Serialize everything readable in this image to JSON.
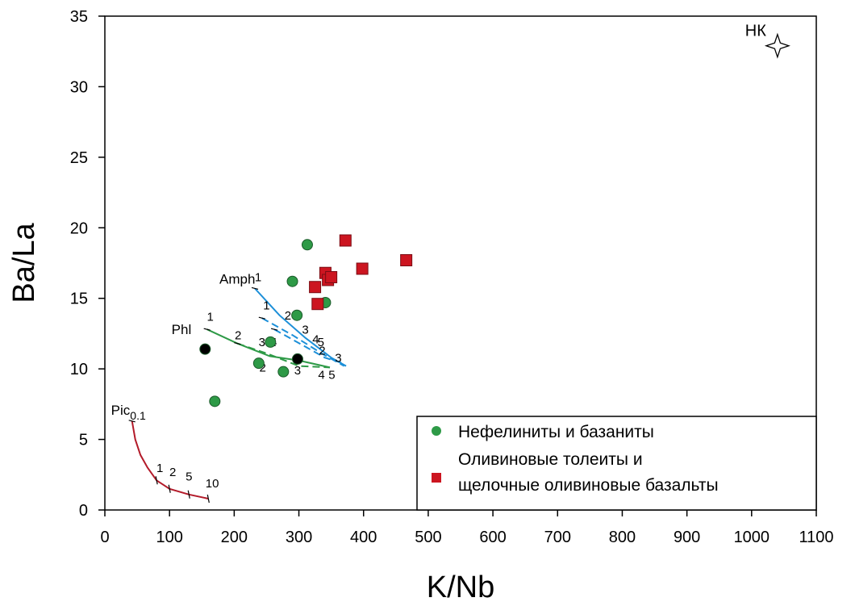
{
  "chart_data": {
    "type": "scatter",
    "xlabel": "K/Nb",
    "ylabel": "Ba/La",
    "xlim": [
      0,
      1100
    ],
    "ylim": [
      0,
      35
    ],
    "xticks": [
      0,
      100,
      200,
      300,
      400,
      500,
      600,
      700,
      800,
      900,
      1000,
      1100
    ],
    "yticks": [
      0,
      5,
      10,
      15,
      20,
      25,
      30,
      35
    ],
    "grid": false,
    "legend_position": "bottom-right",
    "series": [
      {
        "name": "Нефелиниты и базаниты",
        "marker": "circle",
        "color": "#2e9a47",
        "points": [
          [
            313,
            18.8
          ],
          [
            290,
            16.2
          ],
          [
            341,
            14.7
          ],
          [
            297,
            13.8
          ],
          [
            256,
            11.9
          ],
          [
            238,
            10.4
          ],
          [
            276,
            9.8
          ],
          [
            170,
            7.7
          ]
        ]
      },
      {
        "name": "Оливиновые толеиты и щелочные оливиновые базальты",
        "marker": "square",
        "color": "#cc1520",
        "points": [
          [
            372,
            19.1
          ],
          [
            341,
            16.8
          ],
          [
            325,
            15.8
          ],
          [
            329,
            14.6
          ],
          [
            345,
            16.3
          ],
          [
            350,
            16.5
          ],
          [
            398,
            17.1
          ],
          [
            466,
            17.7
          ]
        ]
      },
      {
        "marker": "circle",
        "color": "#000000",
        "points": [
          [
            155,
            11.4
          ],
          [
            298,
            10.7
          ]
        ]
      }
    ],
    "star": {
      "label": "НК",
      "x": 1040,
      "y": 32.9
    },
    "model_curves": [
      {
        "label": "Amph",
        "color": "#1c8fd8",
        "dash": "solid",
        "points": [
          [
            232,
            15.7
          ],
          [
            270,
            13.8
          ],
          [
            310,
            12.2
          ],
          [
            350,
            10.8
          ],
          [
            373,
            10.2
          ]
        ],
        "tick_labels": [
          {
            "text": "1",
            "x": 237,
            "y": 16.2
          }
        ]
      },
      {
        "color": "#1c8fd8",
        "dash": "dashed",
        "points": [
          [
            243,
            13.6
          ],
          [
            290,
            12.4
          ],
          [
            335,
            11.1
          ],
          [
            370,
            10.2
          ]
        ],
        "tick_labels": [
          {
            "text": "1",
            "x": 250,
            "y": 14.2
          },
          {
            "text": "2",
            "x": 283,
            "y": 13.5
          },
          {
            "text": "3",
            "x": 310,
            "y": 12.5
          },
          {
            "text": "4",
            "x": 326,
            "y": 11.8
          },
          {
            "text": "5",
            "x": 334,
            "y": 11.6
          }
        ]
      },
      {
        "color": "#1c8fd8",
        "dash": "dashed",
        "points": [
          [
            262,
            12.8
          ],
          [
            305,
            11.7
          ],
          [
            340,
            10.8
          ],
          [
            368,
            10.4
          ]
        ],
        "tick_labels": [
          {
            "text": "2",
            "x": 336,
            "y": 11.0
          },
          {
            "text": "3",
            "x": 361,
            "y": 10.5
          }
        ]
      },
      {
        "label": "Phl",
        "color": "#2e9a47",
        "dash": "solid",
        "points": [
          [
            158,
            12.8
          ],
          [
            205,
            11.8
          ],
          [
            255,
            10.9
          ],
          [
            300,
            10.6
          ],
          [
            348,
            10.1
          ]
        ],
        "tick_labels": [
          {
            "text": "1",
            "x": 163,
            "y": 13.4
          },
          {
            "text": "2",
            "x": 206,
            "y": 12.1
          },
          {
            "text": "3",
            "x": 243,
            "y": 11.6
          },
          {
            "text": "4",
            "x": 261,
            "y": 11.6
          }
        ]
      },
      {
        "color": "#2e9a47",
        "dash": "dashed",
        "points": [
          [
            205,
            11.8
          ],
          [
            250,
            11.1
          ],
          [
            300,
            10.2
          ],
          [
            348,
            10.1
          ]
        ],
        "tick_labels": [
          {
            "text": "2",
            "x": 244,
            "y": 9.8
          },
          {
            "text": "3",
            "x": 298,
            "y": 9.6
          },
          {
            "text": "4",
            "x": 335,
            "y": 9.3
          },
          {
            "text": "5",
            "x": 351,
            "y": 9.3
          }
        ]
      },
      {
        "label": "Pic0.1",
        "color": "#b31b2a",
        "dash": "solid",
        "points": [
          [
            42,
            6.3
          ],
          [
            47,
            5.0
          ],
          [
            55,
            3.9
          ],
          [
            66,
            3.0
          ],
          [
            80,
            2.1
          ],
          [
            100,
            1.5
          ],
          [
            130,
            1.1
          ],
          [
            160,
            0.8
          ]
        ],
        "tick_labels": [
          {
            "text": "1",
            "x": 85,
            "y": 2.7
          },
          {
            "text": "2",
            "x": 105,
            "y": 2.4
          },
          {
            "text": "5",
            "x": 130,
            "y": 2.1
          },
          {
            "text": "10",
            "x": 166,
            "y": 1.6
          }
        ]
      }
    ]
  }
}
